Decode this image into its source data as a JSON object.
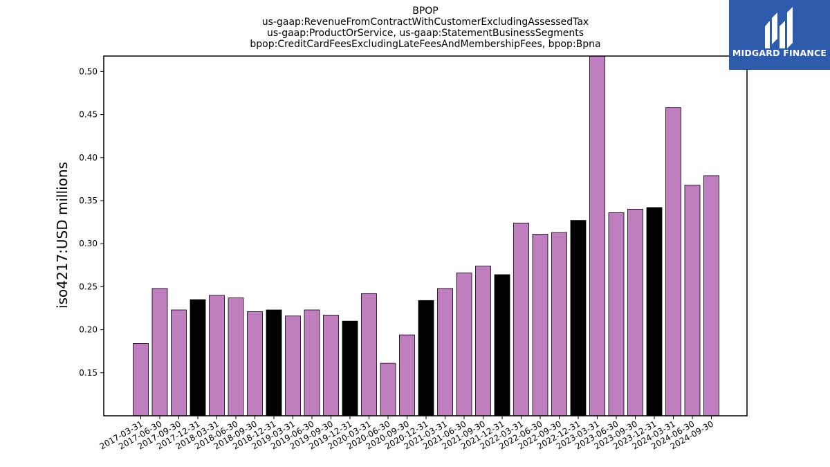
{
  "chart_data": {
    "type": "bar",
    "title_lines": [
      "BPOP",
      "us-gaap:RevenueFromContractWithCustomerExcludingAssessedTax",
      "us-gaap:ProductOrService, us-gaap:StatementBusinessSegments",
      "bpop:CreditCardFeesExcludingLateFeesAndMembershipFees, bpop:Bpna"
    ],
    "ylabel": "iso4217:USD  millions",
    "xlabel": "",
    "ylim": [
      0.1,
      0.518
    ],
    "yticks": [
      0.15,
      0.2,
      0.25,
      0.3,
      0.35,
      0.4,
      0.45,
      0.5
    ],
    "ytick_labels": [
      "0.15",
      "0.20",
      "0.25",
      "0.30",
      "0.35",
      "0.40",
      "0.45",
      "0.50"
    ],
    "categories": [
      "2017-03-31",
      "2017-06-30",
      "2017-09-30",
      "2017-12-31",
      "2018-03-31",
      "2018-06-30",
      "2018-09-30",
      "2018-12-31",
      "2019-03-31",
      "2019-06-30",
      "2019-09-30",
      "2019-12-31",
      "2020-03-31",
      "2020-06-30",
      "2020-09-30",
      "2020-12-31",
      "2021-03-31",
      "2021-06-30",
      "2021-09-30",
      "2021-12-31",
      "2022-03-31",
      "2022-06-30",
      "2022-09-30",
      "2022-12-31",
      "2023-03-31",
      "2023-06-30",
      "2023-09-30",
      "2023-12-31",
      "2024-03-31",
      "2024-06-30",
      "2024-09-30"
    ],
    "values": [
      0.184,
      0.248,
      0.223,
      0.235,
      0.24,
      0.237,
      0.221,
      0.223,
      0.216,
      0.223,
      0.217,
      0.21,
      0.242,
      0.161,
      0.194,
      0.234,
      0.248,
      0.266,
      0.274,
      0.264,
      0.324,
      0.311,
      0.313,
      0.327,
      0.52,
      0.336,
      0.34,
      0.342,
      0.458,
      0.368,
      0.379
    ],
    "quarter_end_q4": [
      false,
      false,
      false,
      true,
      false,
      false,
      false,
      true,
      false,
      false,
      false,
      true,
      false,
      false,
      false,
      true,
      false,
      false,
      false,
      true,
      false,
      false,
      false,
      true,
      false,
      false,
      false,
      true,
      false,
      false,
      false
    ],
    "colors": {
      "default": "#bf7fbf",
      "q4": "#000000",
      "edge": "#000000"
    },
    "grid": false,
    "legend": "none"
  },
  "logo": {
    "text": "MIDGARD FINANCE",
    "background": "#2e5cad"
  }
}
